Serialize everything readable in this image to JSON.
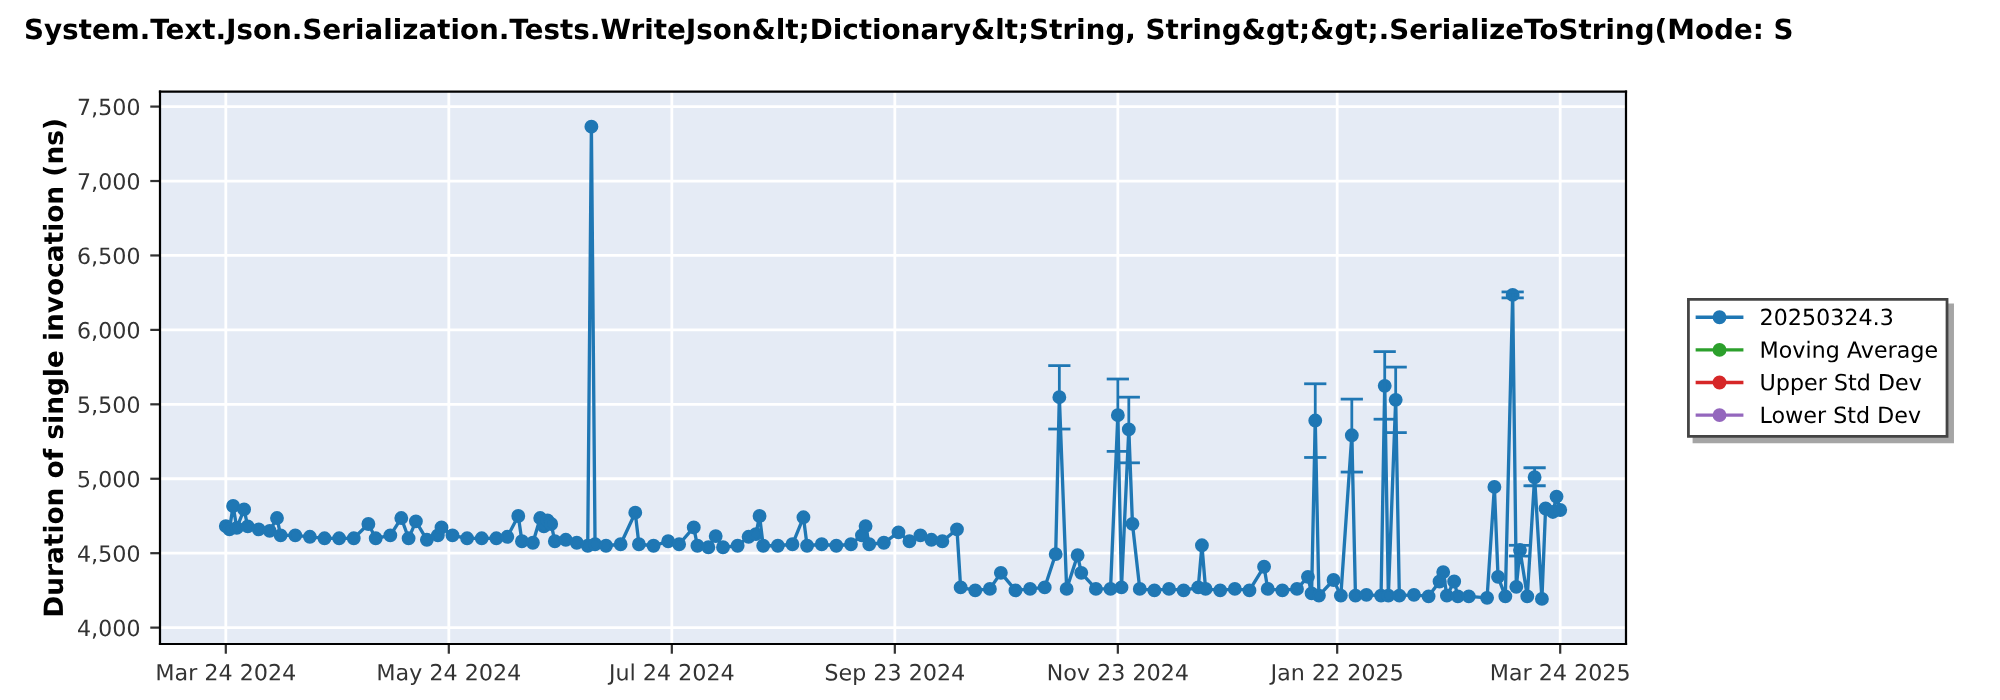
{
  "chart_data": {
    "type": "line",
    "title": "System.Text.Json.Serialization.Tests.WriteJson&lt;Dictionary&lt;String, String&gt;&gt;.SerializeToString(Mode: S",
    "ylabel": "Duration of single invocation (ns)",
    "x": [
      "2024-03-24",
      "2024-03-25",
      "2024-03-26",
      "2024-03-27",
      "2024-03-29",
      "2024-03-30",
      "2024-04-02",
      "2024-04-05",
      "2024-04-07",
      "2024-04-08",
      "2024-04-12",
      "2024-04-16",
      "2024-04-20",
      "2024-04-24",
      "2024-04-28",
      "2024-05-02",
      "2024-05-04",
      "2024-05-08",
      "2024-05-11",
      "2024-05-13",
      "2024-05-15",
      "2024-05-18",
      "2024-05-21",
      "2024-05-22",
      "2024-05-25",
      "2024-05-29",
      "2024-06-02",
      "2024-06-06",
      "2024-06-09",
      "2024-06-12",
      "2024-06-13",
      "2024-06-16",
      "2024-06-18",
      "2024-06-19",
      "2024-06-20",
      "2024-06-21",
      "2024-06-22",
      "2024-06-25",
      "2024-06-28",
      "2024-07-01",
      "2024-07-02",
      "2024-07-03",
      "2024-07-06",
      "2024-07-10",
      "2024-07-14",
      "2024-07-15",
      "2024-07-19",
      "2024-07-23",
      "2024-07-26",
      "2024-07-30",
      "2024-07-31",
      "2024-08-03",
      "2024-08-05",
      "2024-08-07",
      "2024-08-11",
      "2024-08-14",
      "2024-08-16",
      "2024-08-17",
      "2024-08-18",
      "2024-08-22",
      "2024-08-26",
      "2024-08-29",
      "2024-08-30",
      "2024-09-03",
      "2024-09-07",
      "2024-09-11",
      "2024-09-14",
      "2024-09-15",
      "2024-09-16",
      "2024-09-20",
      "2024-09-24",
      "2024-09-27",
      "2024-09-30",
      "2024-10-03",
      "2024-10-06",
      "2024-10-10",
      "2024-10-11",
      "2024-10-15",
      "2024-10-19",
      "2024-10-22",
      "2024-10-26",
      "2024-10-30",
      "2024-11-03",
      "2024-11-06",
      "2024-11-07",
      "2024-11-09",
      "2024-11-12",
      "2024-11-13",
      "2024-11-17",
      "2024-11-21",
      "2024-11-23",
      "2024-11-24",
      "2024-11-26",
      "2024-11-27",
      "2024-11-29",
      "2024-12-03",
      "2024-12-07",
      "2024-12-11",
      "2024-12-15",
      "2024-12-16",
      "2024-12-17",
      "2024-12-21",
      "2024-12-25",
      "2024-12-29",
      "2025-01-02",
      "2025-01-03",
      "2025-01-07",
      "2025-01-11",
      "2025-01-14",
      "2025-01-15",
      "2025-01-16",
      "2025-01-17",
      "2025-01-21",
      "2025-01-23",
      "2025-01-26",
      "2025-01-27",
      "2025-01-30",
      "2025-02-03",
      "2025-02-04",
      "2025-02-05",
      "2025-02-07",
      "2025-02-08",
      "2025-02-12",
      "2025-02-16",
      "2025-02-19",
      "2025-02-20",
      "2025-02-21",
      "2025-02-23",
      "2025-02-24",
      "2025-02-27",
      "2025-03-04",
      "2025-03-06",
      "2025-03-07",
      "2025-03-09",
      "2025-03-11",
      "2025-03-12",
      "2025-03-13",
      "2025-03-15",
      "2025-03-17",
      "2025-03-19",
      "2025-03-20",
      "2025-03-22",
      "2025-03-23",
      "2025-03-24"
    ],
    "series": [
      {
        "name": "20250324.3",
        "color": "#1f77b4",
        "values": [
          4682,
          4660,
          4817,
          4670,
          4794,
          4680,
          4660,
          4650,
          4736,
          4620,
          4620,
          4610,
          4600,
          4600,
          4600,
          4696,
          4600,
          4620,
          4736,
          4600,
          4714,
          4590,
          4620,
          4673,
          4620,
          4600,
          4600,
          4600,
          4610,
          4750,
          4580,
          4570,
          4736,
          4680,
          4720,
          4696,
          4580,
          4590,
          4570,
          4550,
          7365,
          4560,
          4550,
          4560,
          4772,
          4560,
          4550,
          4580,
          4560,
          4673,
          4550,
          4540,
          4615,
          4540,
          4550,
          4610,
          4628,
          4750,
          4550,
          4550,
          4560,
          4741,
          4550,
          4560,
          4550,
          4560,
          4620,
          4682,
          4560,
          4570,
          4640,
          4580,
          4620,
          4590,
          4580,
          4660,
          4270,
          4250,
          4260,
          4368,
          4250,
          4260,
          4270,
          4494,
          5548,
          4260,
          4486,
          4368,
          4260,
          4260,
          5427,
          4270,
          5332,
          4697,
          4260,
          4250,
          4260,
          4250,
          4270,
          4553,
          4260,
          4250,
          4260,
          4250,
          4409,
          4260,
          4250,
          4260,
          4341,
          4230,
          5391,
          4215,
          4320,
          4215,
          5292,
          4215,
          4220,
          4215,
          5624,
          4215,
          5530,
          4215,
          4220,
          4210,
          4310,
          4373,
          4215,
          4310,
          4210,
          4210,
          4200,
          4945,
          4341,
          4210,
          6235,
          4274,
          4521,
          4210,
          5010,
          4193,
          4800,
          4777,
          4880,
          4790
        ],
        "errors": [
          null,
          null,
          null,
          null,
          null,
          null,
          null,
          null,
          null,
          null,
          null,
          null,
          null,
          null,
          null,
          null,
          null,
          null,
          null,
          null,
          null,
          null,
          null,
          null,
          null,
          null,
          null,
          null,
          null,
          null,
          null,
          null,
          null,
          null,
          null,
          null,
          null,
          null,
          null,
          null,
          null,
          null,
          null,
          null,
          null,
          null,
          null,
          null,
          null,
          null,
          null,
          null,
          null,
          null,
          null,
          null,
          null,
          null,
          null,
          null,
          null,
          null,
          null,
          null,
          null,
          null,
          null,
          null,
          null,
          null,
          null,
          null,
          null,
          null,
          null,
          null,
          null,
          null,
          null,
          null,
          null,
          null,
          null,
          null,
          [
            5334,
            5760
          ],
          null,
          null,
          null,
          null,
          null,
          [
            5184,
            5670
          ],
          null,
          [
            5107,
            5548
          ],
          null,
          null,
          null,
          null,
          null,
          null,
          null,
          null,
          null,
          null,
          null,
          null,
          null,
          null,
          null,
          null,
          null,
          [
            5143,
            5638
          ],
          null,
          null,
          null,
          [
            5045,
            5535
          ],
          null,
          null,
          null,
          [
            5400,
            5854
          ],
          null,
          [
            5310,
            5750
          ],
          null,
          null,
          null,
          null,
          null,
          null,
          null,
          null,
          null,
          null,
          null,
          null,
          null,
          [
            6215,
            6255
          ],
          null,
          [
            4481,
            4553
          ],
          null,
          [
            4953,
            5074
          ],
          null,
          null,
          null,
          null,
          null
        ]
      },
      {
        "name": "Moving Average",
        "color": "#2ca02c",
        "values": [
          null,
          null,
          null,
          null,
          null,
          null,
          null,
          null,
          null,
          null,
          null,
          null,
          null,
          null,
          null,
          null,
          null,
          null,
          null,
          null,
          null,
          null,
          null,
          null,
          null,
          null,
          null,
          null,
          null,
          null,
          null,
          null,
          null,
          null,
          null,
          null,
          null,
          null,
          null,
          null,
          null,
          null,
          null,
          null,
          null,
          null,
          null,
          null,
          null,
          null,
          null,
          null,
          null,
          null,
          null,
          null,
          null,
          null,
          null,
          null,
          null,
          null,
          null,
          null,
          null,
          null,
          null,
          null,
          null,
          null,
          null,
          null,
          null,
          null,
          null,
          null,
          null,
          null,
          null,
          null,
          null,
          null,
          null,
          null,
          null,
          null,
          null,
          null,
          null,
          null,
          null,
          null,
          null,
          null,
          null,
          null,
          null,
          null,
          null,
          null,
          null,
          null,
          null,
          null,
          null,
          null,
          null,
          null,
          null,
          null,
          null,
          null,
          null,
          null,
          null,
          null,
          null,
          null,
          null,
          null,
          null,
          null,
          null,
          null,
          null,
          null,
          null,
          null,
          null,
          null,
          null,
          null,
          null,
          null,
          null,
          null,
          null,
          null,
          null,
          null,
          null,
          null,
          null,
          null
        ]
      },
      {
        "name": "Upper Std Dev",
        "color": "#d62728",
        "values": [
          null,
          null,
          null,
          null,
          null,
          null,
          null,
          null,
          null,
          null,
          null,
          null,
          null,
          null,
          null,
          null,
          null,
          null,
          null,
          null,
          null,
          null,
          null,
          null,
          null,
          null,
          null,
          null,
          null,
          null,
          null,
          null,
          null,
          null,
          null,
          null,
          null,
          null,
          null,
          null,
          null,
          null,
          null,
          null,
          null,
          null,
          null,
          null,
          null,
          null,
          null,
          null,
          null,
          null,
          null,
          null,
          null,
          null,
          null,
          null,
          null,
          null,
          null,
          null,
          null,
          null,
          null,
          null,
          null,
          null,
          null,
          null,
          null,
          null,
          null,
          null,
          null,
          null,
          null,
          null,
          null,
          null,
          null,
          null,
          null,
          null,
          null,
          null,
          null,
          null,
          null,
          null,
          null,
          null,
          null,
          null,
          null,
          null,
          null,
          null,
          null,
          null,
          null,
          null,
          null,
          null,
          null,
          null,
          null,
          null,
          null,
          null,
          null,
          null,
          null,
          null,
          null,
          null,
          null,
          null,
          null,
          null,
          null,
          null,
          null,
          null,
          null,
          null,
          null,
          null,
          null,
          null,
          null,
          null,
          null,
          null,
          null,
          null,
          null,
          null,
          null,
          null,
          null,
          null
        ]
      },
      {
        "name": "Lower Std Dev",
        "color": "#9467bd",
        "values": [
          null,
          null,
          null,
          null,
          null,
          null,
          null,
          null,
          null,
          null,
          null,
          null,
          null,
          null,
          null,
          null,
          null,
          null,
          null,
          null,
          null,
          null,
          null,
          null,
          null,
          null,
          null,
          null,
          null,
          null,
          null,
          null,
          null,
          null,
          null,
          null,
          null,
          null,
          null,
          null,
          null,
          null,
          null,
          null,
          null,
          null,
          null,
          null,
          null,
          null,
          null,
          null,
          null,
          null,
          null,
          null,
          null,
          null,
          null,
          null,
          null,
          null,
          null,
          null,
          null,
          null,
          null,
          null,
          null,
          null,
          null,
          null,
          null,
          null,
          null,
          null,
          null,
          null,
          null,
          null,
          null,
          null,
          null,
          null,
          null,
          null,
          null,
          null,
          null,
          null,
          null,
          null,
          null,
          null,
          null,
          null,
          null,
          null,
          null,
          null,
          null,
          null,
          null,
          null,
          null,
          null,
          null,
          null,
          null,
          null,
          null,
          null,
          null,
          null,
          null,
          null,
          null,
          null,
          null,
          null,
          null,
          null,
          null,
          null,
          null,
          null,
          null,
          null,
          null,
          null,
          null,
          null,
          null,
          null,
          null,
          null,
          null,
          null,
          null,
          null,
          null,
          null,
          null,
          null
        ]
      }
    ],
    "xlim": [
      "2024-03-06",
      "2025-04-11"
    ],
    "xticks": [
      {
        "value": "2024-03-24",
        "label": "Mar 24 2024"
      },
      {
        "value": "2024-05-24",
        "label": "May 24 2024"
      },
      {
        "value": "2024-07-24",
        "label": "Jul 24 2024"
      },
      {
        "value": "2024-09-23",
        "label": "Sep 23 2024"
      },
      {
        "value": "2024-11-23",
        "label": "Nov 23 2024"
      },
      {
        "value": "2025-01-22",
        "label": "Jan 22 2025"
      },
      {
        "value": "2025-03-24",
        "label": "Mar 24 2025"
      }
    ],
    "ylim": [
      3890,
      7600
    ],
    "yticks": [
      {
        "value": 4000,
        "label": "4,000"
      },
      {
        "value": 4500,
        "label": "4,500"
      },
      {
        "value": 5000,
        "label": "5,000"
      },
      {
        "value": 5500,
        "label": "5,500"
      },
      {
        "value": 6000,
        "label": "6,000"
      },
      {
        "value": 6500,
        "label": "6,500"
      },
      {
        "value": 7000,
        "label": "7,000"
      },
      {
        "value": 7500,
        "label": "7,500"
      }
    ],
    "grid": true,
    "legend": "right",
    "marker": "circle",
    "line_style": "solid"
  }
}
